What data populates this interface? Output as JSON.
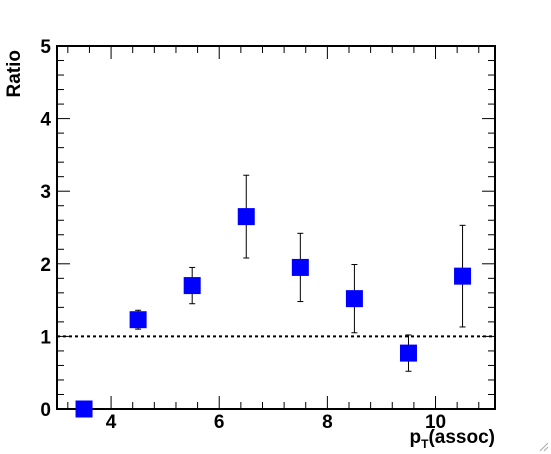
{
  "chart_data": {
    "type": "scatter",
    "title": "",
    "xlabel": {
      "main": "p",
      "sub": "T",
      "suffix": "(assoc)"
    },
    "ylabel": "Ratio",
    "xlim": [
      3,
      11.1
    ],
    "ylim": [
      0,
      5
    ],
    "x_ticks": [
      4,
      6,
      8,
      10
    ],
    "y_ticks": [
      0,
      1,
      2,
      3,
      4,
      5
    ],
    "marker_color": "#0000ff",
    "reference_line": {
      "y": 1,
      "style": "dotted"
    },
    "points": [
      {
        "x": 3.5,
        "y": 0.0,
        "err_low": 0.0,
        "err_high": 0.0
      },
      {
        "x": 4.5,
        "y": 1.23,
        "err_low": 0.13,
        "err_high": 0.13
      },
      {
        "x": 5.5,
        "y": 1.7,
        "err_low": 0.25,
        "err_high": 0.25
      },
      {
        "x": 6.5,
        "y": 2.65,
        "err_low": 0.57,
        "err_high": 0.57
      },
      {
        "x": 7.5,
        "y": 1.95,
        "err_low": 0.47,
        "err_high": 0.47
      },
      {
        "x": 8.5,
        "y": 1.52,
        "err_low": 0.47,
        "err_high": 0.47
      },
      {
        "x": 9.5,
        "y": 0.77,
        "err_low": 0.25,
        "err_high": 0.25
      },
      {
        "x": 10.5,
        "y": 1.83,
        "err_low": 0.7,
        "err_high": 0.7
      }
    ]
  }
}
